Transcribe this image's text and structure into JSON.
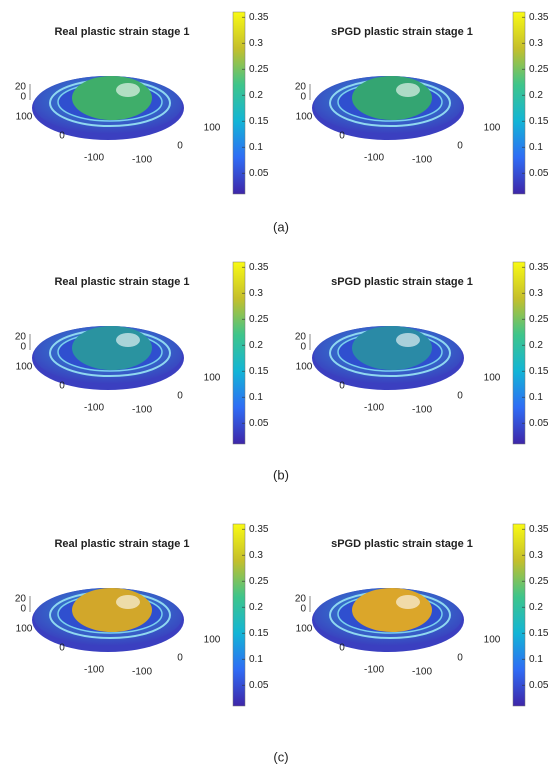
{
  "rows": [
    {
      "caption": "(a)",
      "plots": [
        {
          "title": "Real plastic strain stage 1",
          "dome_color": "#3fae6a",
          "colorbar": {
            "clim": [
              0.01,
              0.36
            ],
            "ticks": [
              0.05,
              0.1,
              0.15,
              0.2,
              0.25,
              0.3,
              0.35
            ]
          },
          "z_ticks": [
            20,
            0
          ],
          "y_ticks": [
            100,
            0,
            -100
          ],
          "x_ticks": [
            100,
            0,
            -100
          ]
        },
        {
          "title": "sPGD plastic strain stage 1",
          "dome_color": "#34a572",
          "colorbar": {
            "clim": [
              0.01,
              0.36
            ],
            "ticks": [
              0.05,
              0.1,
              0.15,
              0.2,
              0.25,
              0.3,
              0.35
            ]
          },
          "z_ticks": [
            20,
            0
          ],
          "y_ticks": [
            100,
            0,
            -100
          ],
          "x_ticks": [
            100,
            0,
            -100
          ]
        }
      ]
    },
    {
      "caption": "(b)",
      "plots": [
        {
          "title": "Real plastic strain stage 1",
          "dome_color": "#2a93a0",
          "colorbar": {
            "clim": [
              0.01,
              0.36
            ],
            "ticks": [
              0.05,
              0.1,
              0.15,
              0.2,
              0.25,
              0.3,
              0.35
            ]
          },
          "z_ticks": [
            20,
            0
          ],
          "y_ticks": [
            100,
            0,
            -100
          ],
          "x_ticks": [
            100,
            0,
            -100
          ]
        },
        {
          "title": "sPGD plastic strain stage 1",
          "dome_color": "#2a8aa6",
          "colorbar": {
            "clim": [
              0.01,
              0.36
            ],
            "ticks": [
              0.05,
              0.1,
              0.15,
              0.2,
              0.25,
              0.3,
              0.35
            ]
          },
          "z_ticks": [
            20,
            0
          ],
          "y_ticks": [
            100,
            0,
            -100
          ],
          "x_ticks": [
            100,
            0,
            -100
          ]
        }
      ]
    },
    {
      "caption": "(c)",
      "plots": [
        {
          "title": "Real plastic strain stage 1",
          "dome_color": "#d2a72a",
          "colorbar": {
            "clim": [
              0.01,
              0.36
            ],
            "ticks": [
              0.05,
              0.1,
              0.15,
              0.2,
              0.25,
              0.3,
              0.35
            ]
          },
          "z_ticks": [
            20,
            0
          ],
          "y_ticks": [
            100,
            0,
            -100
          ],
          "x_ticks": [
            100,
            0,
            -100
          ]
        },
        {
          "title": "sPGD plastic strain stage 1",
          "dome_color": "#dba62a",
          "colorbar": {
            "clim": [
              0.01,
              0.36
            ],
            "ticks": [
              0.05,
              0.1,
              0.15,
              0.2,
              0.25,
              0.3,
              0.35
            ]
          },
          "z_ticks": [
            20,
            0
          ],
          "y_ticks": [
            100,
            0,
            -100
          ],
          "x_ticks": [
            100,
            0,
            -100
          ]
        }
      ]
    }
  ]
}
